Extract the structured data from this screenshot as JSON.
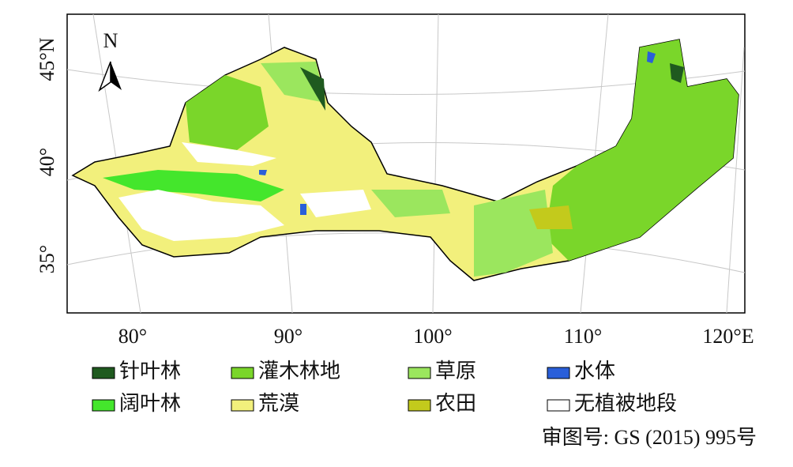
{
  "map": {
    "north": "N",
    "lat_labels": [
      "45°N",
      "40°",
      "35°"
    ],
    "lon_labels": [
      "80°",
      "90°",
      "100°",
      "110°",
      "120°E"
    ],
    "legend": [
      {
        "label": "针叶林",
        "color": "#1f5a1f"
      },
      {
        "label": "灌木林地",
        "color": "#7ad62a"
      },
      {
        "label": "草原",
        "color": "#9be65e"
      },
      {
        "label": "水体",
        "color": "#2a5fd9"
      },
      {
        "label": "阔叶林",
        "color": "#44e62c"
      },
      {
        "label": "荒漠",
        "color": "#f2f07c"
      },
      {
        "label": "农田",
        "color": "#c3ca1c"
      },
      {
        "label": "无植被地段",
        "color": "#ffffff"
      }
    ],
    "approval": "审图号: GS (2015) 995号"
  }
}
